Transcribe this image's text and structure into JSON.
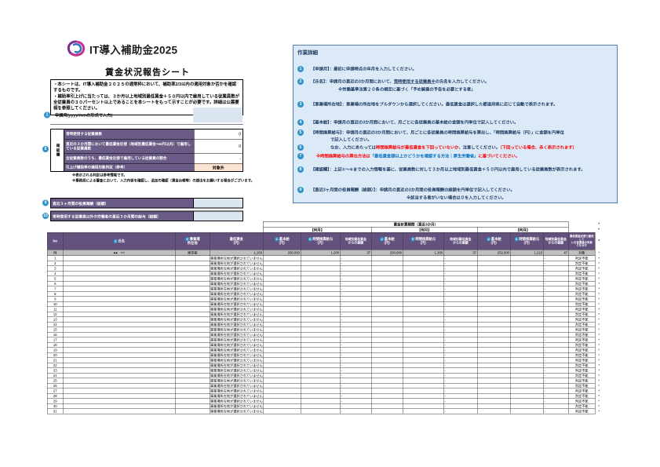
{
  "brand": {
    "name": "IT導入補助金2025"
  },
  "page_title": "賃金状況報告シート",
  "intro_lines": [
    "・本シートは、IT導入補助金２０２５の通常枠において、補助率2/3以内の適用対象か否かを確認するものです。",
    "・補助率引上げに当たっては、３か月以上地域別最低賃金＋５０円以内で雇用している従業員数が全従業員の３０パーセント以上であることを本シートをもって示すことが必要です。詳細は公募要領を参照してください。"
  ],
  "application_month": {
    "number": "1",
    "label": "申請月(yyyy/mmの形式で入力)",
    "value": ""
  },
  "confirm_block": {
    "number": "8",
    "side_label": "確認欄",
    "rows": [
      {
        "label": "常時使用する従業員数",
        "value": "0",
        "highlight": false
      },
      {
        "label": "直近の３か月間において最低賃金近傍（地域別最低賃金+50円以内）で雇用している従業員数",
        "value": "0",
        "highlight": false
      },
      {
        "label": "全従業員数のうち、最低賃金近傍で雇用している従業員の割合",
        "value": "-",
        "highlight": false
      },
      {
        "label": "引上げ補助率の適用対象判定（参考）",
        "value": "対象外",
        "highlight": true
      }
    ]
  },
  "notes": [
    "※表示される判定は参考情報です。",
    "※事務局による審査において、入力内容を確認し、追加の確認（賃金台帳等）の提出をお願いする場合がございます。"
  ],
  "summary_inputs": [
    {
      "number": "9",
      "label": "直近３ヶ月間の役員報酬（総額）",
      "value": ""
    },
    {
      "number": "10",
      "label": "常時使用する従業員以外の労働者の直近３か月間の給与（総額）",
      "value": ""
    }
  ],
  "instructions": {
    "title": "作業詳細",
    "lines": [
      {
        "number": "1",
        "segments": [
          {
            "text": "【申請月】：最初に申請時点の年月を入力してください。"
          }
        ]
      },
      {
        "number": "2",
        "segments": [
          {
            "text": "【氏名】：申請月の直近の3か月間において、"
          },
          {
            "text": "常時使用する従業員※",
            "style": "underline"
          },
          {
            "text": "の氏名を入力してください。"
          }
        ]
      },
      {
        "segments": [
          {
            "text": "※労働基準法第２０条の規定に基づく「予め解雇の予告を必要とする者」"
          }
        ]
      },
      {
        "number": "3",
        "segments": [
          {
            "text": "【事業場所在地】：事業場の所在地をプルダウンから選択してください。最低賃金は選択した都道府県に応じて自動で表示されます。"
          }
        ]
      },
      {
        "number": "4",
        "segments": [
          {
            "text": "【基本給】：申請月の直近の3か月間において、月ごとに各従業員の基本給の金額を円単位で記入してください。"
          }
        ]
      },
      {
        "number": "5",
        "segments": [
          {
            "text": "【時間換算給与】：申請月の直近の3か月間において、月ごとに各従業員の時間換算給与を算出し、「時間換算給与（円）」に金額を円単位"
          }
        ]
      },
      {
        "segments": [
          {
            "text": "で記入してください。"
          }
        ]
      },
      {
        "number": "6",
        "segments": [
          {
            "text": "なお、入力にあたっては"
          },
          {
            "text": "時間換算給与が最低賃金を下回っていないか",
            "style": "red"
          },
          {
            "text": "、注意してください。"
          },
          {
            "text": "（下回っている場合、赤く表示されます）",
            "style": "red"
          }
        ]
      },
      {
        "number": "7",
        "segments": [
          {
            "text": "※時間換算給与の算出方法は",
            "style": "red"
          },
          {
            "text": "「最低賃金額以上かどうかを確認する方法｜厚生労働省」",
            "style": "blue"
          },
          {
            "text": "に基づいてください。",
            "style": "red"
          }
        ]
      },
      {
        "number": "8",
        "segments": [
          {
            "text": "【確認欄】：上記①～⑥までの入力情報を基に、従業員数に対して３か月以上地域別最低賃金＋５０円以内で雇用している従業員数が表示されます。"
          }
        ]
      },
      {
        "number": "9",
        "segments": [
          {
            "text": "【直近3ヶ月間の役員報酬（総額）】：申請月の直近の3か月間の役員報酬の総額を円単位で記入してください。"
          }
        ]
      },
      {
        "segments": [
          {
            "text": "※該当する者がいない場合は０を入力してください。"
          }
        ]
      }
    ]
  },
  "wage_table": {
    "period_header": "賃金計算期間（直近3か月）",
    "month_label": "【何月】",
    "required_mark": "*",
    "columns": {
      "no": "No",
      "name": "氏名",
      "name_number": "2",
      "location": "事業場\n所在地",
      "location_number": "3",
      "min_wage": "最低賃金\n（円）",
      "base_salary": "基本給\n（円）",
      "base_number": "4",
      "hourly": "時間換算給与\n（円）",
      "hourly_number": "5",
      "diff": "地域別最低賃金\nからの差額",
      "judge": "最低賃金近傍で雇用して\nいる従業員の対象\nとなるか"
    },
    "example_row": {
      "no": "例",
      "name": "●●　××",
      "location": "東京都",
      "min_wage": "1,163",
      "months": [
        {
          "base": "250,000",
          "hourly": "1,200",
          "diff": "37"
        },
        {
          "base": "250,000",
          "hourly": "1,200",
          "diff": "37"
        },
        {
          "base": "252,000",
          "hourly": "1,210",
          "diff": "47"
        }
      ],
      "judge": "対象"
    },
    "empty_row": {
      "min_wage_text": "事業場所在地が選択されていません",
      "diff": "-",
      "judge": "判定不能"
    },
    "row_count": 31
  },
  "colors": {
    "header_purple": "#63517e",
    "label_purple": "#6a5a86",
    "input_blue": "#dbe5f1",
    "panel_bg": "#dce9f7",
    "panel_border": "#4f81bd",
    "circle_blue": "#2f93c8",
    "warn_red": "#ff0000",
    "link_blue": "#0070c0",
    "peach": "#fbe3d4",
    "example_gray": "#bfbfbf",
    "navy": "#17375e"
  }
}
